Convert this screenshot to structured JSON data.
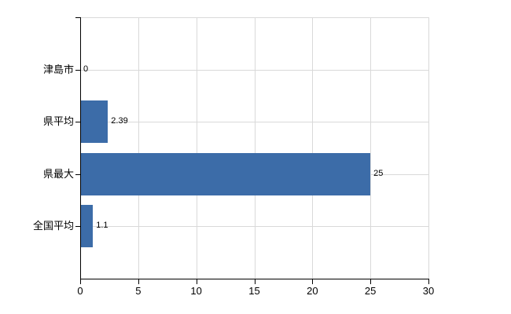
{
  "chart_data": {
    "type": "bar",
    "orientation": "horizontal",
    "title": "",
    "xlabel": "",
    "ylabel": "",
    "categories": [
      "津島市",
      "県平均",
      "県最大",
      "全国平均"
    ],
    "values": [
      0,
      2.39,
      25,
      1.1
    ],
    "value_labels": [
      "0",
      "2.39",
      "25",
      "1.1"
    ],
    "xlim": [
      0,
      30
    ],
    "x_ticks": [
      0,
      5,
      10,
      15,
      20,
      25,
      30
    ],
    "grid": true,
    "legend": "none",
    "colors": {
      "bar": "#3c6ca8",
      "axis": "#000000",
      "grid": "#d9d9d9",
      "text": "#000000",
      "background": "#ffffff"
    }
  }
}
